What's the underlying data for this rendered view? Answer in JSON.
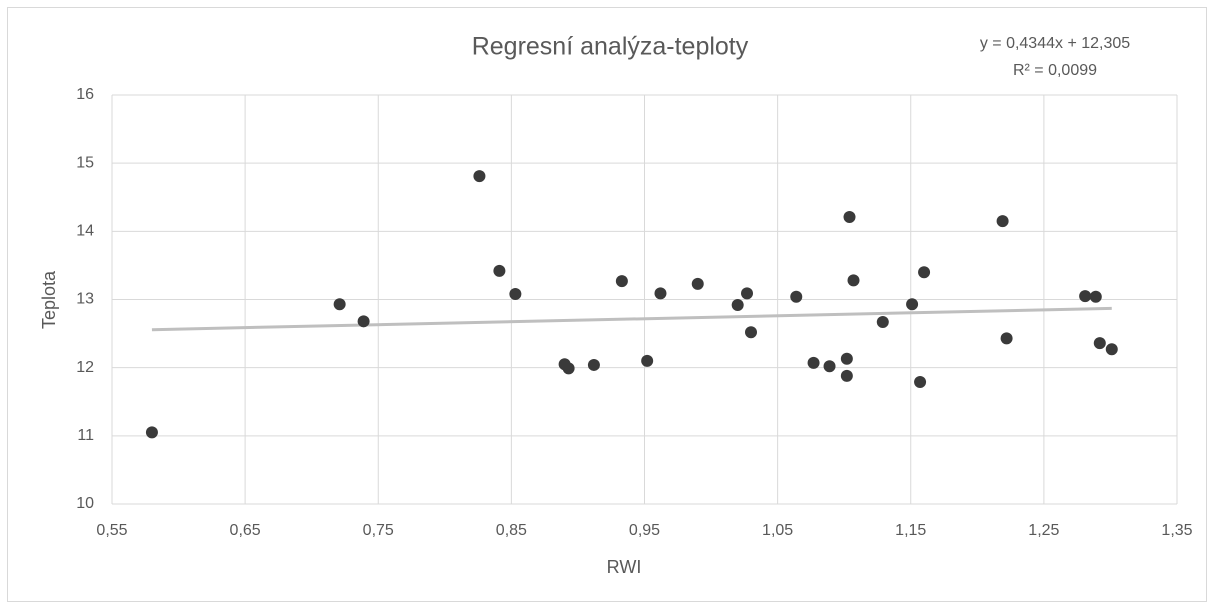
{
  "chart_data": {
    "type": "scatter",
    "title": "Regresní analýza-teploty",
    "x_label": "RWI",
    "y_label": "Teplota",
    "color": "#3a3a3a",
    "grid": true,
    "x": [
      0.58,
      0.721,
      0.739,
      0.826,
      0.841,
      0.853,
      0.89,
      0.893,
      0.912,
      0.933,
      0.952,
      0.962,
      0.99,
      1.02,
      1.027,
      1.03,
      1.064,
      1.077,
      1.089,
      1.102,
      1.102,
      1.104,
      1.107,
      1.129,
      1.151,
      1.157,
      1.16,
      1.219,
      1.222,
      1.281,
      1.289,
      1.292,
      1.301
    ],
    "values": [
      11.05,
      12.93,
      12.68,
      14.81,
      13.42,
      13.08,
      12.05,
      11.99,
      12.04,
      13.27,
      12.1,
      13.09,
      13.23,
      12.92,
      13.09,
      12.52,
      13.04,
      12.07,
      12.02,
      12.13,
      11.88,
      14.21,
      13.28,
      12.67,
      12.93,
      11.79,
      13.4,
      14.15,
      12.43,
      13.05,
      13.04,
      12.36,
      12.27
    ],
    "xlim": [
      0.55,
      1.35
    ],
    "xticks": [
      {
        "value": 0.55,
        "label": "0,55"
      },
      {
        "value": 0.65,
        "label": "0,65"
      },
      {
        "value": 0.75,
        "label": "0,75"
      },
      {
        "value": 0.85,
        "label": "0,85"
      },
      {
        "value": 0.95,
        "label": "0,95"
      },
      {
        "value": 1.05,
        "label": "1,05"
      },
      {
        "value": 1.15,
        "label": "1,15"
      },
      {
        "value": 1.25,
        "label": "1,25"
      },
      {
        "value": 1.35,
        "label": "1,35"
      }
    ],
    "ylim": [
      10,
      16
    ],
    "yticks": [
      10,
      11,
      12,
      13,
      14,
      15,
      16
    ],
    "trendline": {
      "equation": "y = 0,4344x + 12,305",
      "r2": "R² = 0,0099",
      "slope": 0.4344,
      "intercept": 12.305,
      "color": "#bfbfbf"
    }
  }
}
